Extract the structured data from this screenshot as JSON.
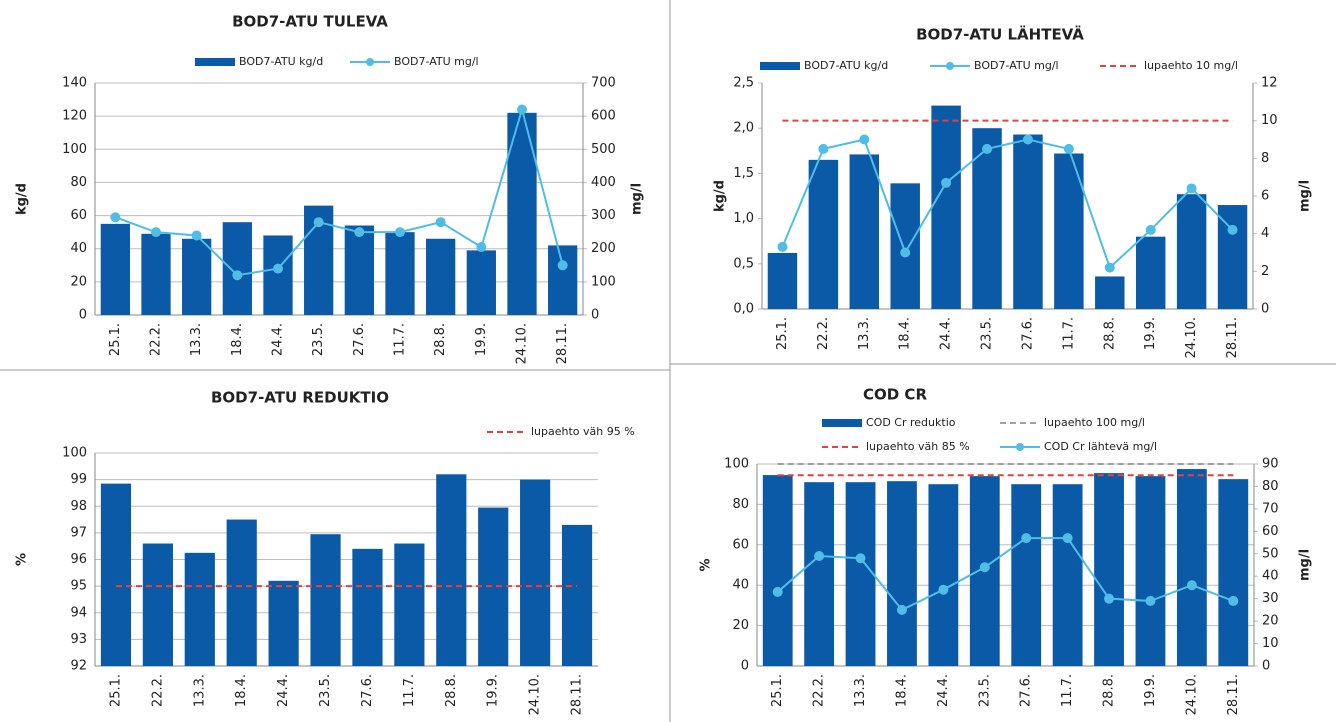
{
  "chart_data": [
    {
      "type": "bar",
      "title": "BOD7-ATU TULEVA",
      "y_label": "kg/d",
      "y2_label": "mg/l",
      "categories": [
        "25.1.",
        "22.2.",
        "13.3.",
        "18.4.",
        "24.4.",
        "23.5.",
        "27.6.",
        "11.7.",
        "28.8.",
        "19.9.",
        "24.10.",
        "28.11."
      ],
      "series": [
        {
          "name": "BOD7-ATU kg/d",
          "type": "bar",
          "color": "#0a5aa8",
          "values": [
            55,
            49,
            46,
            56,
            48,
            66,
            54,
            50,
            46,
            39,
            122,
            42
          ]
        },
        {
          "name": "BOD7-ATU mg/l",
          "type": "line",
          "axis": "y2",
          "marker": true,
          "color": "#4fbde6",
          "values": [
            295,
            250,
            240,
            120,
            140,
            280,
            250,
            250,
            280,
            205,
            620,
            150
          ]
        }
      ],
      "ylim": [
        0,
        140
      ],
      "yticks": [
        0,
        20,
        40,
        60,
        80,
        100,
        120,
        140
      ],
      "y2lim": [
        0,
        700
      ],
      "y2ticks": [
        0,
        100,
        200,
        300,
        400,
        500,
        600,
        700
      ],
      "grid": true
    },
    {
      "type": "bar",
      "title": "BOD7-ATU LÄHTEVÄ",
      "y_label": "kg/d",
      "y2_label": "mg/l",
      "categories": [
        "25.1.",
        "22.2.",
        "13.3.",
        "18.4.",
        "24.4.",
        "23.5.",
        "27.6.",
        "11.7.",
        "28.8.",
        "19.9.",
        "24.10.",
        "28.11."
      ],
      "series": [
        {
          "name": "BOD7-ATU kg/d",
          "type": "bar",
          "color": "#0a5aa8",
          "values": [
            0.62,
            1.65,
            1.71,
            1.39,
            2.25,
            2.0,
            1.93,
            1.72,
            0.36,
            0.8,
            1.27,
            1.15
          ]
        },
        {
          "name": "BOD7-ATU mg/l",
          "type": "line",
          "axis": "y2",
          "marker": true,
          "color": "#4fbde6",
          "values": [
            3.3,
            8.5,
            9.0,
            3.0,
            6.7,
            8.5,
            9.0,
            8.5,
            2.2,
            4.2,
            6.4,
            4.2
          ]
        },
        {
          "name": "lupaehto 10 mg/l",
          "type": "line",
          "axis": "y2",
          "dash": true,
          "color": "#e8403c",
          "values": [
            10,
            10,
            10,
            10,
            10,
            10,
            10,
            10,
            10,
            10,
            10,
            10
          ]
        }
      ],
      "ylim": [
        0,
        2.5
      ],
      "yticks": [
        {
          "value": 0,
          "label": "0,0"
        },
        {
          "value": 0.5,
          "label": "0,5"
        },
        {
          "value": 1,
          "label": "1,0"
        },
        {
          "value": 1.5,
          "label": "1,5"
        },
        {
          "value": 2,
          "label": "2,0"
        },
        {
          "value": 2.5,
          "label": "2,5"
        }
      ],
      "y2lim": [
        0,
        12
      ],
      "y2ticks": [
        0,
        2,
        4,
        6,
        8,
        10,
        12
      ],
      "grid": false
    },
    {
      "type": "bar",
      "title": "BOD7-ATU REDUKTIO",
      "y_label": "%",
      "categories": [
        "25.1.",
        "22.2.",
        "13.3.",
        "18.4.",
        "24.4.",
        "23.5.",
        "27.6.",
        "11.7.",
        "28.8.",
        "19.9.",
        "24.10.",
        "28.11."
      ],
      "series": [
        {
          "type": "bar",
          "color": "#0a5aa8",
          "values": [
            98.85,
            96.6,
            96.25,
            97.5,
            95.2,
            96.95,
            96.4,
            96.6,
            99.2,
            97.95,
            99.0,
            97.3
          ]
        },
        {
          "name": "lupaehto väh 95 %",
          "type": "line",
          "dash": true,
          "color": "#e8403c",
          "values": [
            95,
            95,
            95,
            95,
            95,
            95,
            95,
            95,
            95,
            95,
            95,
            95
          ]
        }
      ],
      "ylim": [
        92,
        100
      ],
      "yticks": [
        92,
        93,
        94,
        95,
        96,
        97,
        98,
        99,
        100
      ],
      "grid": true
    },
    {
      "type": "bar",
      "title": "COD CR",
      "y_label": "%",
      "y2_label": "mg/l",
      "categories": [
        "25.1.",
        "22.2.",
        "13.3.",
        "18.4.",
        "24.4.",
        "23.5.",
        "27.6.",
        "11.7.",
        "28.8.",
        "19.9.",
        "24.10.",
        "28.11."
      ],
      "series": [
        {
          "name": "COD Cr reduktio",
          "type": "bar",
          "color": "#0a5aa8",
          "values": [
            94.5,
            91,
            91,
            91.5,
            90,
            94,
            90,
            90,
            95.5,
            94,
            97.5,
            92.5
          ]
        },
        {
          "name": "lupaehto 100 mg/l",
          "type": "line",
          "dash": true,
          "color": "#a0a0a0",
          "values": [
            100,
            100,
            100,
            100,
            100,
            100,
            100,
            100,
            100,
            100,
            100,
            100
          ]
        },
        {
          "name": "lupaehto väh 85 %",
          "type": "line",
          "axis": "y2",
          "dash": true,
          "color": "#e8403c",
          "values": [
            85,
            85,
            85,
            85,
            85,
            85,
            85,
            85,
            85,
            85,
            85,
            85
          ]
        },
        {
          "name": "COD Cr lähtevä mg/l",
          "type": "line",
          "axis": "y2",
          "marker": true,
          "color": "#4fbde6",
          "values": [
            33,
            49,
            48,
            25,
            34,
            44,
            57,
            57,
            30,
            29,
            36,
            29
          ]
        }
      ],
      "ylim": [
        0,
        100
      ],
      "yticks": [
        0,
        20,
        40,
        60,
        80,
        100
      ],
      "y2lim": [
        0,
        90
      ],
      "y2ticks": [
        0,
        10,
        20,
        30,
        40,
        50,
        60,
        70,
        80,
        90
      ],
      "grid": true
    }
  ]
}
